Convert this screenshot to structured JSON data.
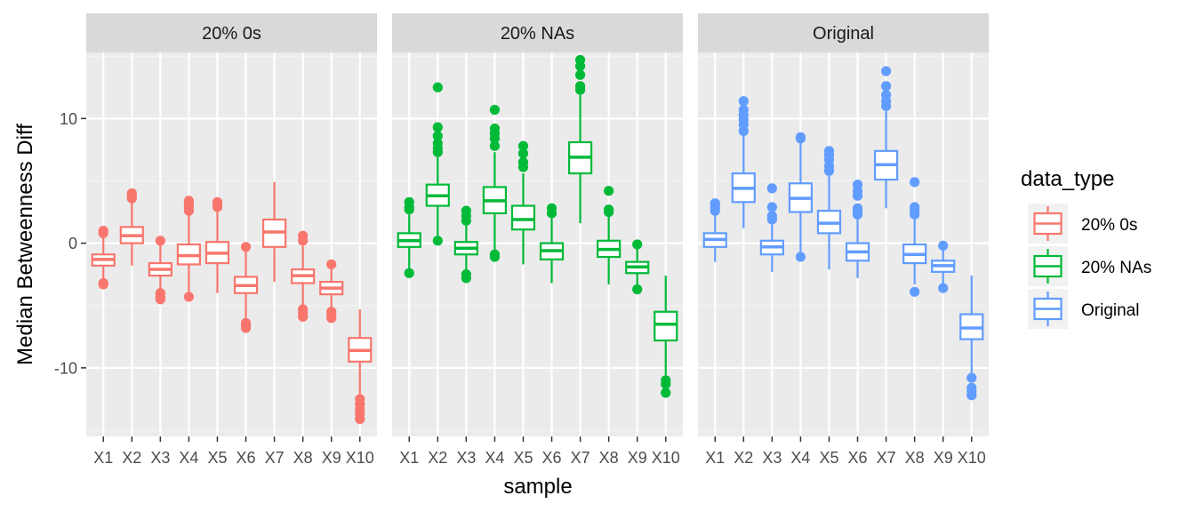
{
  "chart_data": {
    "type": "boxplot",
    "xlabel": "sample",
    "ylabel": "Median Betweenness Diff",
    "ylim": [
      -15.5,
      15.3
    ],
    "yticks": [
      10,
      0,
      -10
    ],
    "ytick_labels": [
      "10",
      "0",
      "-10"
    ],
    "categories": [
      "X1",
      "X2",
      "X3",
      "X4",
      "X5",
      "X6",
      "X7",
      "X8",
      "X9",
      "X10"
    ],
    "legend": {
      "title": "data_type",
      "entries": [
        "20% 0s",
        "20% NAs",
        "Original"
      ]
    },
    "panels": [
      {
        "name": "20% 0s",
        "color": "#F8766D",
        "boxes": [
          {
            "x": "X1",
            "q1": -1.8,
            "median": -1.3,
            "q3": -0.9,
            "whisker_low": -2.9,
            "whisker_high": 0.5,
            "outliers": [
              1.0,
              0.8,
              -3.2,
              -3.3
            ]
          },
          {
            "x": "X2",
            "q1": 0.0,
            "median": 0.6,
            "q3": 1.3,
            "whisker_low": -1.8,
            "whisker_high": 3.3,
            "outliers": [
              3.6,
              3.8,
              4.0
            ]
          },
          {
            "x": "X3",
            "q1": -2.6,
            "median": -2.1,
            "q3": -1.6,
            "whisker_low": -3.8,
            "whisker_high": 0.0,
            "outliers": [
              0.2,
              -4.0,
              -4.3,
              -4.5
            ]
          },
          {
            "x": "X4",
            "q1": -1.7,
            "median": -1.0,
            "q3": -0.1,
            "whisker_low": -4.0,
            "whisker_high": 2.3,
            "outliers": [
              2.6,
              2.9,
              3.2,
              3.4,
              -4.3
            ]
          },
          {
            "x": "X5",
            "q1": -1.6,
            "median": -0.8,
            "q3": 0.1,
            "whisker_low": -4.0,
            "whisker_high": 2.6,
            "outliers": [
              2.9,
              3.1,
              3.3
            ]
          },
          {
            "x": "X6",
            "q1": -4.0,
            "median": -3.4,
            "q3": -2.7,
            "whisker_low": -6.0,
            "whisker_high": -0.5,
            "outliers": [
              -0.3,
              -6.4,
              -6.6,
              -6.8
            ]
          },
          {
            "x": "X7",
            "q1": -0.3,
            "median": 0.9,
            "q3": 1.9,
            "whisker_low": -3.1,
            "whisker_high": 4.9,
            "outliers": []
          },
          {
            "x": "X8",
            "q1": -3.2,
            "median": -2.6,
            "q3": -2.1,
            "whisker_low": -5.0,
            "whisker_high": -0.2,
            "outliers": [
              0.2,
              0.6,
              -5.3,
              -5.6,
              -5.9
            ]
          },
          {
            "x": "X9",
            "q1": -4.1,
            "median": -3.6,
            "q3": -3.1,
            "whisker_low": -5.2,
            "whisker_high": -2.0,
            "outliers": [
              -1.7,
              -5.5,
              -5.8,
              -6.0
            ]
          },
          {
            "x": "X10",
            "q1": -9.5,
            "median": -8.6,
            "q3": -7.6,
            "whisker_low": -12.2,
            "whisker_high": -5.3,
            "outliers": [
              -12.5,
              -12.9,
              -13.3,
              -13.7,
              -14.1
            ]
          }
        ]
      },
      {
        "name": "20% NAs",
        "color": "#00BA38",
        "boxes": [
          {
            "x": "X1",
            "q1": -0.3,
            "median": 0.2,
            "q3": 0.8,
            "whisker_low": -2.2,
            "whisker_high": 2.3,
            "outliers": [
              2.7,
              2.9,
              3.3,
              -2.4
            ]
          },
          {
            "x": "X2",
            "q1": 3.0,
            "median": 3.8,
            "q3": 4.7,
            "whisker_low": 0.5,
            "whisker_high": 6.9,
            "outliers": [
              7.3,
              7.6,
              8.0,
              8.6,
              9.3,
              12.5,
              0.2
            ]
          },
          {
            "x": "X3",
            "q1": -0.9,
            "median": -0.4,
            "q3": 0.1,
            "whisker_low": -2.2,
            "whisker_high": 1.5,
            "outliers": [
              1.8,
              2.2,
              2.6,
              -2.5,
              -2.8
            ]
          },
          {
            "x": "X4",
            "q1": 2.4,
            "median": 3.4,
            "q3": 4.5,
            "whisker_low": -0.5,
            "whisker_high": 7.3,
            "outliers": [
              7.8,
              8.4,
              8.8,
              9.2,
              10.7,
              -0.9,
              -1.1
            ]
          },
          {
            "x": "X5",
            "q1": 1.1,
            "median": 1.9,
            "q3": 3.0,
            "whisker_low": -1.7,
            "whisker_high": 5.6,
            "outliers": [
              6.1,
              6.5,
              7.2,
              7.8
            ]
          },
          {
            "x": "X6",
            "q1": -1.3,
            "median": -0.6,
            "q3": 0.0,
            "whisker_low": -3.2,
            "whisker_high": 2.0,
            "outliers": [
              2.4,
              2.8
            ]
          },
          {
            "x": "X7",
            "q1": 5.6,
            "median": 6.9,
            "q3": 8.1,
            "whisker_low": 1.6,
            "whisker_high": 11.9,
            "outliers": [
              12.3,
              12.6,
              13.5,
              14.2,
              14.7
            ]
          },
          {
            "x": "X8",
            "q1": -1.1,
            "median": -0.5,
            "q3": 0.2,
            "whisker_low": -3.3,
            "whisker_high": 2.2,
            "outliers": [
              2.5,
              2.7,
              4.2
            ]
          },
          {
            "x": "X9",
            "q1": -2.4,
            "median": -1.9,
            "q3": -1.5,
            "whisker_low": -3.4,
            "whisker_high": -0.3,
            "outliers": [
              -0.1,
              -3.7
            ]
          },
          {
            "x": "X10",
            "q1": -7.8,
            "median": -6.5,
            "q3": -5.5,
            "whisker_low": -10.6,
            "whisker_high": -2.6,
            "outliers": [
              -11.0,
              -11.3,
              -12.0
            ]
          }
        ]
      },
      {
        "name": "Original",
        "color": "#619CFF",
        "boxes": [
          {
            "x": "X1",
            "q1": -0.3,
            "median": 0.3,
            "q3": 0.8,
            "whisker_low": -1.5,
            "whisker_high": 2.4,
            "outliers": [
              2.6,
              2.8,
              3.0,
              3.2
            ]
          },
          {
            "x": "X2",
            "q1": 3.3,
            "median": 4.4,
            "q3": 5.6,
            "whisker_low": 1.2,
            "whisker_high": 8.6,
            "outliers": [
              9.0,
              9.5,
              9.9,
              10.3,
              10.7,
              11.4
            ]
          },
          {
            "x": "X3",
            "q1": -0.9,
            "median": -0.3,
            "q3": 0.2,
            "whisker_low": -2.3,
            "whisker_high": 1.6,
            "outliers": [
              1.9,
              2.2,
              2.9,
              4.4
            ]
          },
          {
            "x": "X4",
            "q1": 2.5,
            "median": 3.6,
            "q3": 4.8,
            "whisker_low": -0.7,
            "whisker_high": 8.1,
            "outliers": [
              8.4,
              8.5,
              -1.1
            ]
          },
          {
            "x": "X5",
            "q1": 0.8,
            "median": 1.6,
            "q3": 2.6,
            "whisker_low": -2.1,
            "whisker_high": 5.4,
            "outliers": [
              5.8,
              6.2,
              6.7,
              7.1,
              7.4
            ]
          },
          {
            "x": "X6",
            "q1": -1.4,
            "median": -0.7,
            "q3": 0.0,
            "whisker_low": -2.8,
            "whisker_high": 2.0,
            "outliers": [
              2.3,
              2.6,
              2.8,
              3.8,
              4.2,
              4.7
            ]
          },
          {
            "x": "X7",
            "q1": 5.1,
            "median": 6.3,
            "q3": 7.4,
            "whisker_low": 2.8,
            "whisker_high": 10.6,
            "outliers": [
              11.0,
              11.4,
              11.9,
              12.6,
              13.8
            ]
          },
          {
            "x": "X8",
            "q1": -1.6,
            "median": -0.9,
            "q3": -0.1,
            "whisker_low": -3.3,
            "whisker_high": 1.9,
            "outliers": [
              2.3,
              2.6,
              2.9,
              4.9,
              -3.9
            ]
          },
          {
            "x": "X9",
            "q1": -2.3,
            "median": -1.8,
            "q3": -1.4,
            "whisker_low": -3.3,
            "whisker_high": -0.4,
            "outliers": [
              -0.2,
              -3.6
            ]
          },
          {
            "x": "X10",
            "q1": -7.7,
            "median": -6.8,
            "q3": -5.7,
            "whisker_low": -10.4,
            "whisker_high": -2.6,
            "outliers": [
              -10.8,
              -11.6,
              -11.9,
              -12.2
            ]
          }
        ]
      }
    ]
  }
}
